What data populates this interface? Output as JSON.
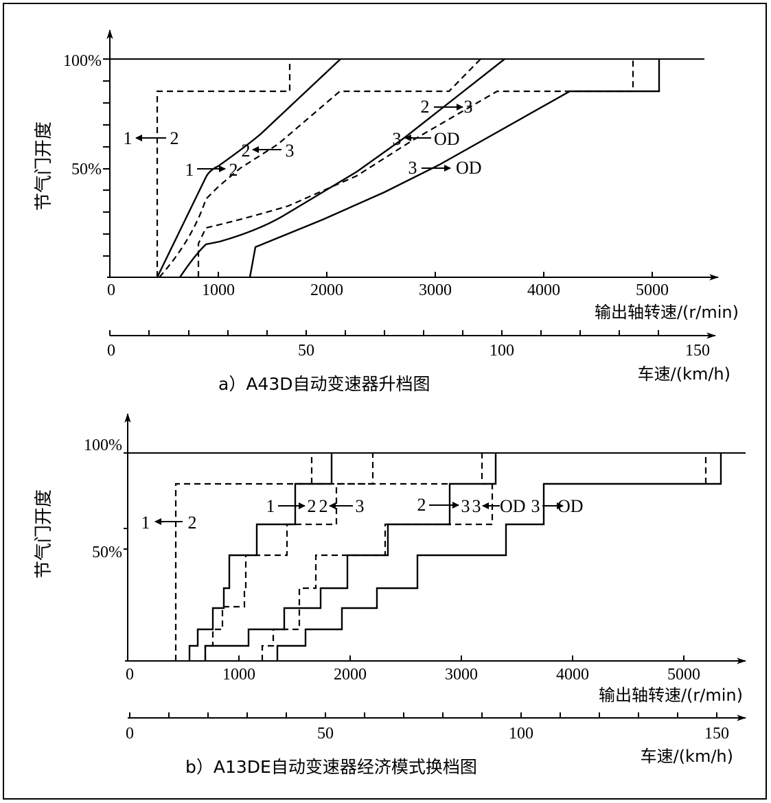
{
  "chart_data": [
    {
      "type": "line",
      "caption": "a）A43D自动变速器升档图",
      "y_axis": {
        "label": "节气门开度",
        "ticks": [
          "100%",
          "50%"
        ]
      },
      "x_axis": {
        "label": "输出轴转速/(r/min)",
        "ticks": [
          "0",
          "1000",
          "2000",
          "3000",
          "4000",
          "5000"
        ],
        "range": [
          0,
          5500
        ]
      },
      "x2_axis": {
        "label": "车速/(km/h)",
        "ticks": [
          "0",
          "50",
          "100",
          "150"
        ],
        "range": [
          0,
          155
        ]
      },
      "shift_labels": [
        {
          "from": "1",
          "to": "2",
          "dir": "left"
        },
        {
          "from": "1",
          "to": "2",
          "dir": "right"
        },
        {
          "from": "2",
          "to": "3",
          "dir": "left"
        },
        {
          "from": "2",
          "to": "3",
          "dir": "right"
        },
        {
          "from": "3",
          "to": "OD",
          "dir": "left"
        },
        {
          "from": "3",
          "to": "OD",
          "dir": "right"
        }
      ],
      "series": [
        {
          "line": "solid",
          "points": [
            [
              900,
              0
            ],
            [
              900,
              48
            ],
            [
              1000,
              51
            ],
            [
              1500,
              70
            ],
            [
              2000,
              92
            ],
            [
              2150,
              100
            ]
          ]
        },
        {
          "line": "dashed",
          "points": [
            [
              700,
              0
            ],
            [
              900,
              37
            ],
            [
              1500,
              58
            ],
            [
              2200,
              84
            ],
            [
              3200,
              84
            ],
            [
              3400,
              100
            ]
          ]
        },
        {
          "line": "solid",
          "points": [
            [
              650,
              0
            ],
            [
              900,
              15
            ],
            [
              1500,
              27
            ],
            [
              2200,
              50
            ],
            [
              2900,
              70
            ],
            [
              3700,
              100
            ]
          ]
        },
        {
          "line": "dashed",
          "points": [
            [
              450,
              0
            ],
            [
              900,
              22
            ],
            [
              1500,
              35
            ],
            [
              2500,
              50
            ],
            [
              3500,
              75
            ],
            [
              3600,
              84
            ],
            [
              4900,
              84
            ],
            [
              4900,
              100
            ]
          ]
        },
        {
          "line": "solid",
          "points": [
            [
              1300,
              0
            ],
            [
              1350,
              14
            ],
            [
              2000,
              28
            ],
            [
              3000,
              52
            ],
            [
              4200,
              84
            ],
            [
              5100,
              84
            ],
            [
              5100,
              100
            ]
          ]
        },
        {
          "line": "dashed",
          "points": [
            [
              450,
              0
            ],
            [
              450,
              84
            ],
            [
              1650,
              84
            ],
            [
              1650,
              100
            ]
          ]
        }
      ]
    },
    {
      "type": "line",
      "caption": "b）A13DE自动变速器经济模式换档图",
      "y_axis": {
        "label": "节气门开度",
        "ticks": [
          "100%",
          "50%"
        ]
      },
      "x_axis": {
        "label": "输出轴转速/(r/min)",
        "ticks": [
          "0",
          "1000",
          "2000",
          "3000",
          "4000",
          "5000"
        ],
        "range": [
          0,
          5800
        ]
      },
      "x2_axis": {
        "label": "车速/(km/h)",
        "ticks": [
          "0",
          "50",
          "100",
          "150"
        ],
        "range": [
          0,
          162
        ]
      },
      "shift_labels": [
        {
          "from": "1",
          "to": "2",
          "dir": "left"
        },
        {
          "from": "1",
          "to": "2",
          "dir": "right"
        },
        {
          "from": "2",
          "to": "3",
          "dir": "left"
        },
        {
          "from": "2",
          "to": "3",
          "dir": "right"
        },
        {
          "from": "3",
          "to": "OD",
          "dir": "left"
        },
        {
          "from": "3",
          "to": "OD",
          "dir": "right"
        }
      ],
      "series": [
        {
          "line": "solid",
          "points": [
            [
              400,
              0
            ],
            [
              400,
              8
            ],
            [
              500,
              8
            ],
            [
              500,
              15
            ],
            [
              700,
              15
            ],
            [
              700,
              25
            ],
            [
              850,
              25
            ],
            [
              850,
              34
            ],
            [
              950,
              34
            ],
            [
              950,
              48
            ],
            [
              1250,
              48
            ],
            [
              1250,
              62
            ],
            [
              1650,
              62
            ],
            [
              1650,
              79
            ],
            [
              1900,
              79
            ],
            [
              1900,
              93
            ]
          ]
        },
        {
          "line": "dashed",
          "points": [
            [
              600,
              0
            ],
            [
              600,
              8
            ],
            [
              700,
              8
            ],
            [
              700,
              15
            ],
            [
              850,
              15
            ],
            [
              850,
              25
            ],
            [
              1050,
              25
            ],
            [
              1050,
              34
            ],
            [
              1150,
              34
            ],
            [
              1150,
              48
            ],
            [
              1500,
              48
            ],
            [
              1500,
              62
            ],
            [
              2050,
              62
            ],
            [
              2050,
              79
            ],
            [
              1500,
              79
            ],
            [
              1500,
              93
            ]
          ]
        },
        {
          "line": "solid",
          "points": [
            [
              700,
              0
            ],
            [
              700,
              8
            ],
            [
              1150,
              8
            ],
            [
              1150,
              15
            ],
            [
              1500,
              15
            ],
            [
              1500,
              24
            ],
            [
              1750,
              24
            ],
            [
              1750,
              33
            ],
            [
              2050,
              33
            ],
            [
              2050,
              48
            ],
            [
              2600,
              48
            ],
            [
              2600,
              62
            ],
            [
              3000,
              62
            ],
            [
              3000,
              79
            ],
            [
              3500,
              79
            ],
            [
              3500,
              93
            ]
          ]
        },
        {
          "line": "dashed",
          "points": [
            [
              1250,
              0
            ],
            [
              1250,
              8
            ],
            [
              1400,
              8
            ],
            [
              1400,
              15
            ],
            [
              1650,
              15
            ],
            [
              1650,
              33
            ],
            [
              1800,
              33
            ],
            [
              1800,
              48
            ],
            [
              2550,
              48
            ],
            [
              2550,
              62
            ],
            [
              3000,
              62
            ],
            [
              3000,
              79
            ],
            [
              3300,
              79
            ],
            [
              3300,
              93
            ]
          ]
        },
        {
          "line": "solid",
          "points": [
            [
              1450,
              0
            ],
            [
              1450,
              8
            ],
            [
              1750,
              8
            ],
            [
              1750,
              15
            ],
            [
              2400,
              15
            ],
            [
              2400,
              24
            ],
            [
              2750,
              24
            ],
            [
              2750,
              33
            ],
            [
              3200,
              33
            ],
            [
              3200,
              48
            ],
            [
              3750,
              48
            ],
            [
              3750,
              62
            ],
            [
              4000,
              62
            ],
            [
              4000,
              79
            ],
            [
              4300,
              79
            ],
            [
              4300,
              93
            ]
          ]
        },
        {
          "line": "dashed",
          "points": [
            [
              380,
              0
            ],
            [
              380,
              79
            ],
            [
              5900,
              79
            ]
          ]
        }
      ]
    }
  ],
  "labels": {
    "a_caption": "a）A43D自动变速器升档图",
    "b_caption": "b）A13DE自动变速器经济模式换档图",
    "ylabel": "节气门开度",
    "y100": "100%",
    "y50": "50%",
    "xlabel": "输出轴转速/(r/min)",
    "x2label": "车速/(km/h)",
    "xt0": "0",
    "xt1": "1000",
    "xt2": "2000",
    "xt3": "3000",
    "xt4": "4000",
    "xt5": "5000",
    "vt0": "0",
    "vt1": "50",
    "vt2": "100",
    "vt3": "150"
  },
  "annotations_a": [
    "1",
    "2",
    "1",
    "2",
    "2",
    "3",
    "2",
    "3",
    "3",
    "OD",
    "3",
    "OD"
  ],
  "annotations_b": [
    "1",
    "2",
    "1",
    "2",
    "2",
    "3",
    "2",
    "3",
    "3",
    "OD",
    "3",
    "OD"
  ]
}
